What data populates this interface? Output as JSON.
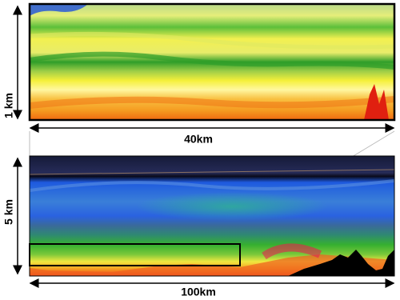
{
  "panels": [
    {
      "height_label": "1 km",
      "width_label": "40km"
    },
    {
      "height_label": "5 km",
      "width_label": "100km"
    }
  ]
}
